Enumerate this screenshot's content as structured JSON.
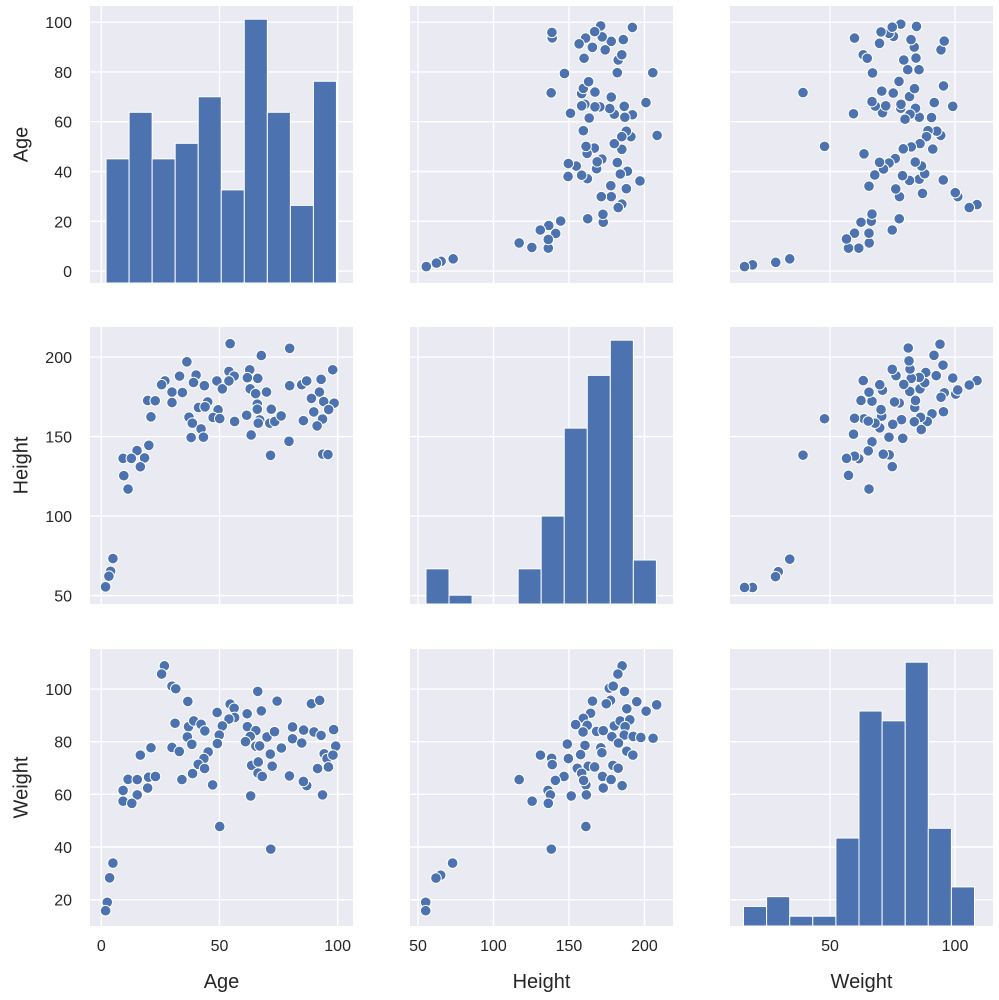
{
  "chart_data": {
    "type": "scatter",
    "title": "",
    "variables": [
      "Age",
      "Height",
      "Weight"
    ],
    "marker_color": "#4c72b0",
    "background_color": "#eaeaf2",
    "grid": true,
    "axes": {
      "Age": {
        "lim": [
          -4.8,
          106.5
        ],
        "x_ticks": [
          0,
          50,
          100
        ],
        "y_ticks": [
          0,
          20,
          40,
          60,
          80,
          100
        ]
      },
      "Height": {
        "lim": [
          44.7,
          218.9
        ],
        "x_ticks": [
          50,
          100,
          150,
          200
        ],
        "y_ticks": [
          50,
          100,
          150,
          200
        ]
      },
      "Weight": {
        "lim": [
          10.0,
          115.2
        ],
        "x_ticks": [
          50,
          100
        ],
        "y_ticks": [
          20,
          40,
          60,
          80,
          100
        ]
      }
    },
    "histograms": {
      "Age": {
        "range": [
          2,
          99.5
        ],
        "counts": [
          8,
          11,
          8,
          9,
          12,
          6,
          17,
          11,
          5,
          13
        ]
      },
      "Height": {
        "range": [
          55.3,
          207.9
        ],
        "counts": [
          4,
          1,
          0,
          0,
          4,
          10,
          20,
          26,
          30,
          5
        ]
      },
      "Weight": {
        "range": [
          15.4,
          107.8
        ],
        "counts": [
          2,
          3,
          1,
          1,
          9,
          22,
          21,
          27,
          10,
          4
        ]
      }
    },
    "scatter": {
      "Age_Height": [
        [
          54.5,
          208.4
        ],
        [
          79.7,
          205.5
        ],
        [
          67.7,
          201
        ],
        [
          36.2,
          197
        ],
        [
          97.9,
          192
        ],
        [
          26.9,
          185
        ],
        [
          25.5,
          182.6
        ],
        [
          33.1,
          188
        ],
        [
          40.1,
          188.7
        ],
        [
          39,
          184
        ],
        [
          43.6,
          182
        ],
        [
          48.9,
          185
        ],
        [
          51.2,
          180
        ],
        [
          54,
          191
        ],
        [
          56.2,
          188
        ],
        [
          54,
          185
        ],
        [
          62.8,
          192
        ],
        [
          61.8,
          187
        ],
        [
          66.2,
          186.6
        ],
        [
          63,
          180
        ],
        [
          65.3,
          177
        ],
        [
          69.9,
          178
        ],
        [
          79.7,
          182
        ],
        [
          84.8,
          182.6
        ],
        [
          86.9,
          185
        ],
        [
          93,
          186
        ],
        [
          92.3,
          178
        ],
        [
          88.9,
          174
        ],
        [
          94.1,
          172
        ],
        [
          98.5,
          171
        ],
        [
          96.2,
          167
        ],
        [
          89.9,
          165.5
        ],
        [
          93.6,
          161
        ],
        [
          91.3,
          156.7
        ],
        [
          85.5,
          160
        ],
        [
          29.9,
          178
        ],
        [
          34.3,
          177.7
        ],
        [
          29.9,
          171.4
        ],
        [
          19.6,
          172.7
        ],
        [
          22.8,
          172.5
        ],
        [
          21,
          162.4
        ],
        [
          41.1,
          168.3
        ],
        [
          45,
          171.8
        ],
        [
          43.9,
          168.7
        ],
        [
          49.4,
          166.8
        ],
        [
          47.3,
          162
        ],
        [
          50.1,
          161.3
        ],
        [
          37.1,
          162.2
        ],
        [
          38.5,
          158.4
        ],
        [
          42.2,
          154.8
        ],
        [
          38,
          149.4
        ],
        [
          43.2,
          149.6
        ],
        [
          56.4,
          159.5
        ],
        [
          61.5,
          163.4
        ],
        [
          66,
          170.4
        ],
        [
          66,
          167.2
        ],
        [
          67,
          160.5
        ],
        [
          66.4,
          158.4
        ],
        [
          63.4,
          151
        ],
        [
          71.3,
          158.4
        ],
        [
          71.9,
          167.2
        ],
        [
          73.4,
          159.5
        ],
        [
          76.1,
          163
        ],
        [
          79.4,
          147
        ],
        [
          71.6,
          138.2
        ],
        [
          93.7,
          138.9
        ],
        [
          95.9,
          138.7
        ],
        [
          20.1,
          144.5
        ],
        [
          15.1,
          141.2
        ],
        [
          18.3,
          136.6
        ],
        [
          9.2,
          136.3
        ],
        [
          12.7,
          136.3
        ],
        [
          16.5,
          131
        ],
        [
          9.5,
          125.4
        ],
        [
          11.3,
          117
        ],
        [
          4.9,
          73.3
        ],
        [
          3.9,
          65.3
        ],
        [
          3.2,
          62.2
        ],
        [
          1.8,
          55.5
        ]
      ],
      "Age_Weight": [
        [
          26.7,
          108.8
        ],
        [
          25.5,
          105.7
        ],
        [
          29.9,
          101.1
        ],
        [
          31.5,
          100.1
        ],
        [
          36.6,
          95.3
        ],
        [
          66.2,
          99.1
        ],
        [
          74.4,
          95.4
        ],
        [
          88.9,
          94.4
        ],
        [
          92.4,
          95.7
        ],
        [
          49,
          91.1
        ],
        [
          54.5,
          94.3
        ],
        [
          56.2,
          92.7
        ],
        [
          56.4,
          89.2
        ],
        [
          54,
          88.6
        ],
        [
          61.7,
          90.6
        ],
        [
          67.7,
          91.7
        ],
        [
          31.2,
          87
        ],
        [
          36.9,
          85.7
        ],
        [
          39.1,
          87.9
        ],
        [
          42.2,
          86.6
        ],
        [
          43.8,
          84.1
        ],
        [
          51.2,
          86
        ],
        [
          49.9,
          82.5
        ],
        [
          49.1,
          79.3
        ],
        [
          61.8,
          85.7
        ],
        [
          65.4,
          84.2
        ],
        [
          63,
          82
        ],
        [
          61,
          80
        ],
        [
          65.4,
          78.3
        ],
        [
          67,
          78.4
        ],
        [
          70.1,
          81.8
        ],
        [
          73.3,
          83.8
        ],
        [
          80.9,
          85.6
        ],
        [
          80.9,
          81.1
        ],
        [
          84.8,
          79.5
        ],
        [
          85.6,
          84.4
        ],
        [
          90,
          83.7
        ],
        [
          93,
          82.4
        ],
        [
          98.3,
          84.6
        ],
        [
          99.2,
          78.3
        ],
        [
          94.3,
          75.4
        ],
        [
          95.5,
          73.6
        ],
        [
          98,
          74.9
        ],
        [
          91.5,
          69.8
        ],
        [
          96.1,
          70.4
        ],
        [
          86.9,
          63.3
        ],
        [
          85.5,
          64.9
        ],
        [
          93.6,
          59.8
        ],
        [
          79.6,
          67
        ],
        [
          76.2,
          77.6
        ],
        [
          71.5,
          75.3
        ],
        [
          72.3,
          70.7
        ],
        [
          63.6,
          71
        ],
        [
          66.4,
          72.3
        ],
        [
          66.3,
          68.1
        ],
        [
          68.1,
          66.8
        ],
        [
          63.2,
          59.4
        ],
        [
          50.1,
          47.8
        ],
        [
          71.7,
          39.2
        ],
        [
          36.4,
          81.8
        ],
        [
          38.3,
          79
        ],
        [
          29.9,
          77.8
        ],
        [
          33,
          76.3
        ],
        [
          45.2,
          76.1
        ],
        [
          43.4,
          73.6
        ],
        [
          41,
          71.4
        ],
        [
          43.7,
          69.8
        ],
        [
          38.6,
          67.9
        ],
        [
          34.1,
          65.6
        ],
        [
          47.1,
          63.6
        ],
        [
          21,
          77.7
        ],
        [
          16.5,
          74.9
        ],
        [
          11.3,
          65.7
        ],
        [
          15.2,
          65.6
        ],
        [
          20,
          66.5
        ],
        [
          22.9,
          66.8
        ],
        [
          19.6,
          62.4
        ],
        [
          15.2,
          59.8
        ],
        [
          9.2,
          61.5
        ],
        [
          9.2,
          57.4
        ],
        [
          12.9,
          56.6
        ],
        [
          4.9,
          33.9
        ],
        [
          3.5,
          28.3
        ],
        [
          2.5,
          19
        ],
        [
          1.8,
          15.8
        ]
      ],
      "Height_Weight": [
        [
          185.2,
          108.8
        ],
        [
          182.4,
          105.7
        ],
        [
          176.7,
          100.3
        ],
        [
          179.3,
          101.1
        ],
        [
          186.8,
          99.1
        ],
        [
          165.6,
          95.4
        ],
        [
          177.5,
          95.7
        ],
        [
          174.7,
          94.4
        ],
        [
          194.9,
          95.2
        ],
        [
          208.1,
          94
        ],
        [
          201.1,
          91.6
        ],
        [
          188.3,
          92.5
        ],
        [
          164.3,
          90.8
        ],
        [
          159.5,
          88.9
        ],
        [
          154.4,
          86.5
        ],
        [
          162.1,
          86.2
        ],
        [
          159.3,
          83.7
        ],
        [
          168.3,
          83.9
        ],
        [
          172.7,
          84.2
        ],
        [
          180,
          86
        ],
        [
          183.9,
          87.9
        ],
        [
          190.3,
          88.3
        ],
        [
          187.2,
          85.7
        ],
        [
          186.6,
          82.5
        ],
        [
          192.5,
          82
        ],
        [
          197.6,
          81.6
        ],
        [
          205.7,
          81.3
        ],
        [
          178.4,
          81.9
        ],
        [
          182.8,
          79.5
        ],
        [
          188.3,
          76.4
        ],
        [
          192.3,
          74.9
        ],
        [
          148.9,
          79.1
        ],
        [
          160.6,
          78.6
        ],
        [
          171.1,
          77.7
        ],
        [
          171.8,
          75.8
        ],
        [
          157.7,
          75.1
        ],
        [
          149.6,
          73.6
        ],
        [
          131.1,
          74.9
        ],
        [
          138.5,
          73.7
        ],
        [
          138.9,
          71.3
        ],
        [
          155.5,
          69.9
        ],
        [
          162.8,
          70.7
        ],
        [
          167,
          70.4
        ],
        [
          179.1,
          71
        ],
        [
          182.6,
          69.9
        ],
        [
          146.7,
          66.8
        ],
        [
          141,
          65.3
        ],
        [
          158.4,
          68
        ],
        [
          161.2,
          63.6
        ],
        [
          159.7,
          65.3
        ],
        [
          172.2,
          66.8
        ],
        [
          177.9,
          65.6
        ],
        [
          185.2,
          63.3
        ],
        [
          172.7,
          62.4
        ],
        [
          117,
          65.6
        ],
        [
          136.1,
          61.5
        ],
        [
          137.7,
          59.8
        ],
        [
          125.6,
          57.4
        ],
        [
          136.3,
          56.6
        ],
        [
          151.5,
          59.4
        ],
        [
          161.5,
          59.8
        ],
        [
          161.2,
          47.8
        ],
        [
          138.3,
          39.2
        ],
        [
          72.9,
          33.9
        ],
        [
          65,
          29.3
        ],
        [
          61.9,
          28.2
        ],
        [
          55.1,
          19
        ],
        [
          55.1,
          15.8
        ]
      ]
    }
  }
}
